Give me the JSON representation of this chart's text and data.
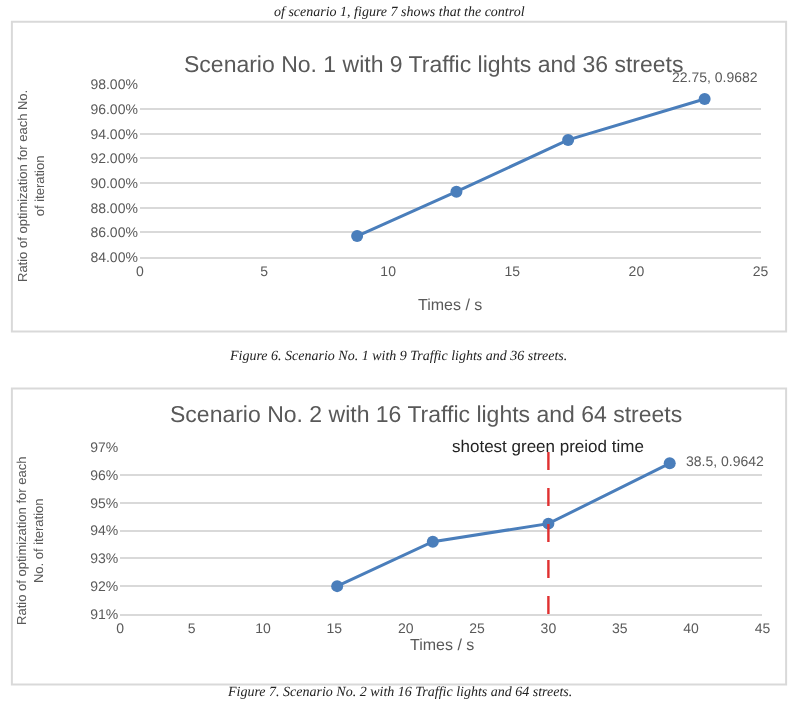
{
  "chart_data": [
    {
      "type": "line",
      "title": "Scenario No. 1 with 9 Traffic lights and 36 streets",
      "xlabel": "Times / s",
      "ylabel": "Ratio of optimization for each No. of iteration",
      "x": [
        8.75,
        12.75,
        17.25,
        22.75
      ],
      "series": [
        {
          "color": "#4a7ebb",
          "values": [
            0.857,
            0.893,
            0.935,
            0.9682
          ]
        }
      ],
      "xlim": [
        0,
        25
      ],
      "xticks": [
        0,
        5,
        10,
        15,
        20,
        25
      ],
      "ylim": [
        0.84,
        0.98
      ],
      "yticks": [
        {
          "value": 0.84,
          "label": "84.00%"
        },
        {
          "value": 0.86,
          "label": "86.00%"
        },
        {
          "value": 0.88,
          "label": "88.00%"
        },
        {
          "value": 0.9,
          "label": "90.00%"
        },
        {
          "value": 0.92,
          "label": "92.00%"
        },
        {
          "value": 0.94,
          "label": "94.00%"
        },
        {
          "value": 0.96,
          "label": "96.00%"
        },
        {
          "value": 0.98,
          "label": "98.00%"
        }
      ],
      "grid": "y",
      "marker": "circle",
      "line_style": "solid",
      "annotations": [
        {
          "text": "22.75, 0.9682",
          "x": 22.75,
          "y": 0.9682
        },
        "of scenario 1, figure 7 shows that the control",
        "Figure 6. Scenario No. 1 with 9 Traffic lights and 36 streets."
      ]
    },
    {
      "type": "line",
      "title": "Scenario No. 2 with 16 Traffic lights and 64 streets",
      "xlabel": "Times / s",
      "ylabel": "Ratio of optimization for each No. of iteration",
      "x": [
        15.2,
        21.9,
        30,
        38.5
      ],
      "series": [
        {
          "color": "#4a7ebb",
          "values": [
            0.92,
            0.936,
            0.9425,
            0.9642
          ]
        }
      ],
      "xlim": [
        0,
        45
      ],
      "xticks": [
        0,
        5,
        10,
        15,
        20,
        25,
        30,
        35,
        40,
        45
      ],
      "ylim": [
        0.91,
        0.97
      ],
      "yticks": [
        {
          "value": 0.91,
          "label": "91%"
        },
        {
          "value": 0.92,
          "label": "92%"
        },
        {
          "value": 0.93,
          "label": "93%"
        },
        {
          "value": 0.94,
          "label": "94%"
        },
        {
          "value": 0.95,
          "label": "95%"
        },
        {
          "value": 0.96,
          "label": "96%"
        },
        {
          "value": 0.97,
          "label": "97%"
        }
      ],
      "grid": "y",
      "marker": "circle",
      "line_style": "solid",
      "ref_lines": [
        {
          "axis": "x",
          "value": 30,
          "label": "shotest green preiod time",
          "color": "#e03030",
          "line_style": "dashed"
        }
      ],
      "annotations": [
        {
          "text": "38.5, 0.9642",
          "x": 38.5,
          "y": 0.9642
        },
        "Figure 7. Scenario No. 2 with 16 Traffic lights and 64 streets."
      ]
    }
  ]
}
